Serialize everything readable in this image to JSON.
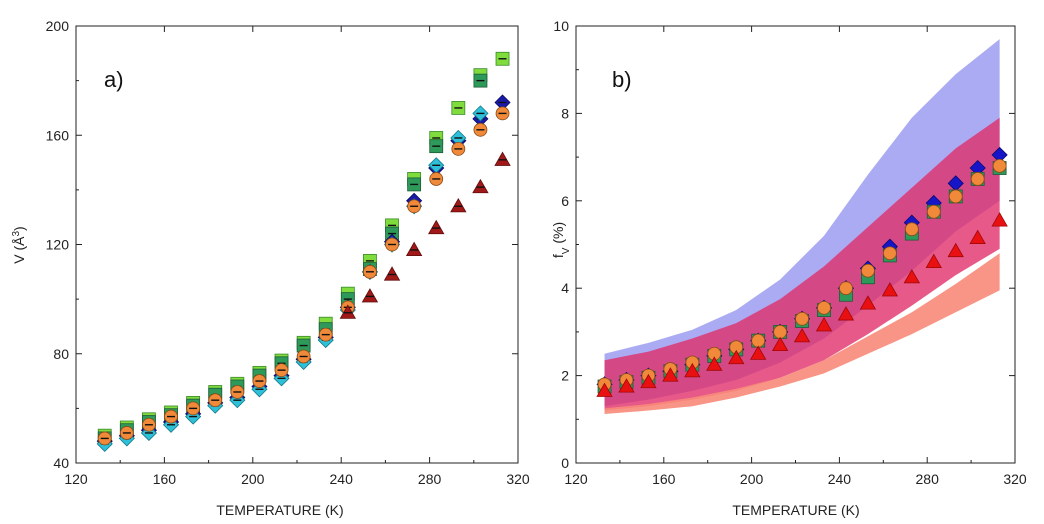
{
  "chart_data": [
    {
      "type": "scatter",
      "panel_label": "a)",
      "xlabel": "TEMPERATURE (K)",
      "ylabel_main": "V (Å",
      "ylabel_sup": "3",
      "ylabel_close": ")",
      "xlim": [
        120,
        320
      ],
      "ylim": [
        40,
        200
      ],
      "xticks": [
        120,
        160,
        200,
        240,
        280,
        320
      ],
      "yticks": [
        40,
        80,
        120,
        160,
        200
      ],
      "x": [
        133,
        143,
        153,
        163,
        173,
        183,
        193,
        203,
        213,
        223,
        233,
        243,
        253,
        263,
        273,
        283,
        293,
        303,
        313
      ],
      "series": [
        {
          "name": "green squares",
          "marker": "square",
          "color": "#7fdc3c",
          "edge": "#3a8a2a",
          "values": [
            50,
            53,
            56,
            58.5,
            62,
            66,
            69,
            73,
            77.5,
            84,
            91,
            102,
            114,
            127,
            144,
            159,
            170,
            182,
            188
          ]
        },
        {
          "name": "dark green squares",
          "marker": "square",
          "color": "#2e9a5a",
          "edge": "#1c5c38",
          "values": [
            49,
            52,
            55,
            57.5,
            61,
            65,
            68,
            72,
            76.5,
            83,
            89,
            100,
            111,
            124,
            142,
            156,
            null,
            180,
            null
          ]
        },
        {
          "name": "blue diamonds",
          "marker": "diamond",
          "color": "#1a1aa8",
          "edge": "#0a0a60",
          "values": [
            48,
            50,
            52,
            55,
            58,
            62,
            64,
            68,
            72,
            78,
            86,
            97,
            110,
            121,
            136,
            148,
            158,
            166,
            172
          ]
        },
        {
          "name": "cyan diamonds",
          "marker": "diamond",
          "color": "#2ec0d8",
          "edge": "#14788a",
          "values": [
            47,
            49,
            51,
            54,
            57,
            61,
            63,
            67,
            71,
            77,
            85,
            96,
            110,
            120,
            134,
            149,
            159,
            168,
            null
          ]
        },
        {
          "name": "orange circles",
          "marker": "circle",
          "color": "#f08a3a",
          "edge": "#8a4a18",
          "values": [
            49,
            51,
            54,
            57,
            60,
            63,
            66,
            70,
            74,
            79,
            87,
            97,
            110,
            120,
            134,
            144,
            155,
            162,
            168
          ]
        },
        {
          "name": "dark red triangles",
          "marker": "triangle",
          "color": "#a01818",
          "edge": "#600c0c",
          "values": [
            null,
            null,
            null,
            null,
            null,
            null,
            null,
            null,
            null,
            null,
            null,
            95,
            101,
            109,
            118,
            126,
            134,
            141,
            151
          ]
        }
      ]
    },
    {
      "type": "scatter",
      "panel_label": "b)",
      "xlabel": "TEMPERATURE (K)",
      "ylabel_main": "f",
      "ylabel_sub": "V",
      "ylabel_close": " (%)",
      "xlim": [
        120,
        320
      ],
      "ylim": [
        0,
        10
      ],
      "xticks": [
        120,
        160,
        200,
        240,
        280,
        320
      ],
      "yticks": [
        0,
        2,
        4,
        6,
        8,
        10
      ],
      "x": [
        133,
        143,
        153,
        163,
        173,
        183,
        193,
        203,
        213,
        223,
        233,
        243,
        253,
        263,
        273,
        283,
        293,
        303,
        313
      ],
      "bands": [
        {
          "name": "blue band",
          "color": "#8f8fef",
          "opacity": 0.75,
          "x": [
            133,
            153,
            173,
            193,
            213,
            233,
            253,
            273,
            293,
            313
          ],
          "upper": [
            2.5,
            2.75,
            3.05,
            3.5,
            4.2,
            5.2,
            6.6,
            7.9,
            8.9,
            9.7
          ],
          "lower": [
            1.3,
            1.45,
            1.65,
            1.9,
            2.3,
            2.85,
            3.6,
            4.4,
            5.3,
            6.0
          ]
        },
        {
          "name": "magenta band",
          "color": "#e0306a",
          "opacity": 0.8,
          "x": [
            133,
            153,
            173,
            193,
            213,
            233,
            253,
            273,
            293,
            313
          ],
          "upper": [
            2.35,
            2.55,
            2.85,
            3.2,
            3.75,
            4.5,
            5.4,
            6.3,
            7.2,
            7.9
          ],
          "lower": [
            1.2,
            1.3,
            1.45,
            1.65,
            1.95,
            2.35,
            2.95,
            3.6,
            4.3,
            4.9
          ]
        },
        {
          "name": "salmon band",
          "color": "#f88a7a",
          "opacity": 0.9,
          "x": [
            133,
            153,
            173,
            193,
            213,
            233,
            253,
            273,
            293,
            313
          ],
          "upper": [
            1.25,
            1.35,
            1.5,
            1.7,
            1.95,
            2.35,
            2.9,
            3.45,
            4.1,
            4.8
          ],
          "lower": [
            1.12,
            1.2,
            1.3,
            1.5,
            1.75,
            2.05,
            2.5,
            2.95,
            3.45,
            3.95
          ]
        }
      ],
      "series": [
        {
          "name": "blue diamonds",
          "marker": "diamond",
          "color": "#1616c8",
          "edge": "#0a0a70",
          "values": [
            1.8,
            1.9,
            2.0,
            2.1,
            2.25,
            2.45,
            2.6,
            2.8,
            3.0,
            3.3,
            3.55,
            4.0,
            4.45,
            4.95,
            5.5,
            5.95,
            6.4,
            6.75,
            7.05
          ]
        },
        {
          "name": "green squares",
          "marker": "square",
          "color": "#2e9a5a",
          "edge": "#1c5c38",
          "values": [
            1.75,
            1.85,
            1.95,
            2.1,
            2.25,
            2.45,
            2.6,
            2.8,
            3.0,
            3.25,
            3.5,
            3.85,
            4.25,
            4.75,
            5.25,
            5.75,
            6.1,
            6.5,
            6.75
          ]
        },
        {
          "name": "orange circles",
          "marker": "circle",
          "color": "#f08a3a",
          "edge": "#8a4a18",
          "values": [
            1.8,
            1.9,
            2.0,
            2.15,
            2.3,
            2.5,
            2.65,
            2.8,
            3.0,
            3.3,
            3.55,
            4.0,
            4.4,
            4.8,
            5.35,
            5.75,
            6.1,
            6.5,
            6.8
          ]
        },
        {
          "name": "red triangles",
          "marker": "triangle",
          "color": "#e81010",
          "edge": "#a00808",
          "values": [
            1.65,
            1.75,
            1.85,
            2.0,
            2.1,
            2.25,
            2.4,
            2.5,
            2.7,
            2.9,
            3.15,
            3.4,
            3.65,
            3.95,
            4.25,
            4.6,
            4.85,
            5.15,
            5.55
          ]
        }
      ]
    }
  ]
}
